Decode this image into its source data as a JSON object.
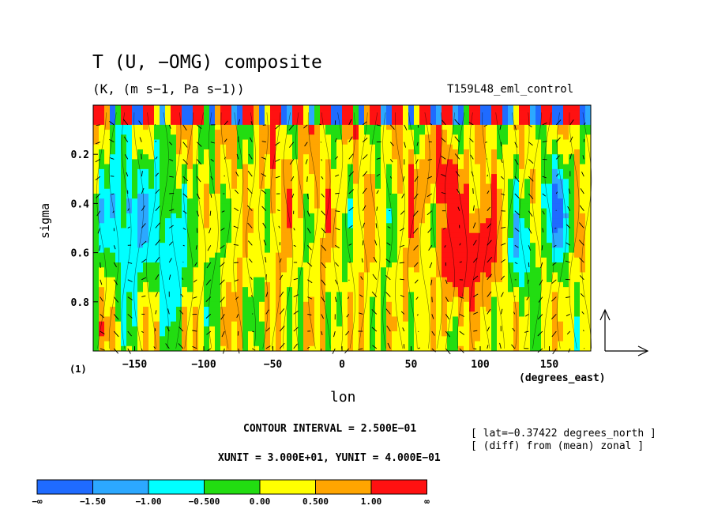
{
  "title": "T (U, −OMG) composite",
  "subtitle": "(K, (m s−1, Pa s−1))",
  "run_label": "T159L48_eml_control",
  "panel_index": "(1)",
  "info": {
    "contour_interval": "CONTOUR INTERVAL = 2.500E−01",
    "xy_unit": "XUNIT = 3.000E+01, YUNIT = 4.000E−01",
    "lat": "[ lat=−0.37422 degrees_north ]",
    "diff": "[ (diff) from (mean) zonal ]"
  },
  "chart_data": {
    "type": "heatmap",
    "xlabel": "lon",
    "x_units": "(degrees_east)",
    "ylabel": "sigma",
    "xlim": [
      -180,
      180
    ],
    "ylim": [
      1.0,
      0.0
    ],
    "x_ticks": [
      -150,
      -100,
      -50,
      0,
      50,
      100,
      150
    ],
    "x_tick_labels": [
      "−150",
      "−100",
      "−50",
      "0",
      "50",
      "100",
      "150"
    ],
    "y_ticks": [
      0.2,
      0.4,
      0.6,
      0.8
    ],
    "y_tick_labels": [
      "0.2",
      "0.4",
      "0.6",
      "0.8"
    ],
    "colorbar": {
      "colors": [
        "#1f6bff",
        "#2ca8ff",
        "#00ffff",
        "#22dd11",
        "#ffff00",
        "#ffa500",
        "#ff1111"
      ],
      "labels": [
        "−∞",
        "−1.50",
        "−1.00",
        "−0.500",
        "0.00",
        "0.500",
        "1.00",
        "∞"
      ]
    },
    "vector_reference": {
      "u": 30.0,
      "omega": 0.4
    }
  }
}
